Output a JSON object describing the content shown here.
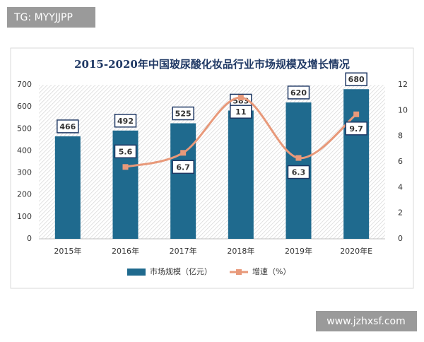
{
  "watermarks": {
    "top_left": "TG: MYYJJPP",
    "bottom_right": "www.jzhxsf.com"
  },
  "chart_data": {
    "type": "bar-line",
    "title": "2015-2020年中国玻尿酸化妆品行业市场规模及增长情况",
    "categories": [
      "2015年",
      "2016年",
      "2017年",
      "2018年",
      "2019年",
      "2020年E"
    ],
    "series": [
      {
        "name": "市场规模（亿元）",
        "type": "bar",
        "color": "#1f6a8e",
        "values": [
          466,
          492,
          525,
          583,
          620,
          680
        ]
      },
      {
        "name": "增速（%）",
        "type": "line",
        "axis": "y2",
        "color": "#e8997a",
        "values": [
          null,
          5.6,
          6.7,
          11,
          6.3,
          9.7
        ]
      }
    ],
    "ylim": [
      0,
      700
    ],
    "yticks": [
      0,
      100,
      200,
      300,
      400,
      500,
      600,
      700
    ],
    "y2lim": [
      0,
      12
    ],
    "y2ticks": [
      0,
      2,
      4,
      6,
      8,
      10,
      12
    ],
    "legend": "bottom",
    "grid": false
  }
}
